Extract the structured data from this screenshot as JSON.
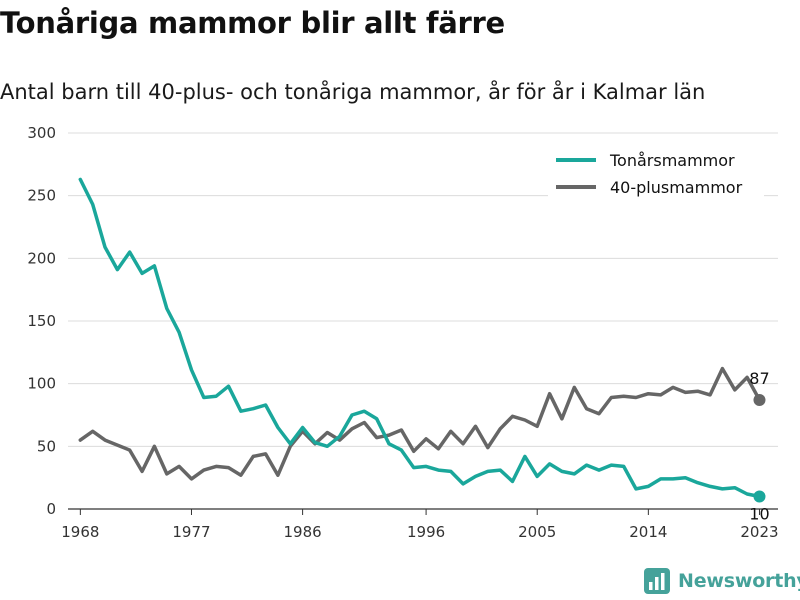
{
  "header": {
    "title": "Tonåriga mammor blir allt färre",
    "subtitle": "Antal barn till 40-plus- och tonåriga mammor, år för år i Kalmar län"
  },
  "brand": {
    "name": "Newsworthy",
    "icon": "newsworthy-logo-icon",
    "color": "#45a29a"
  },
  "chart_data": {
    "type": "line",
    "x_ticks": [
      "1968",
      "1977",
      "1986",
      "1996",
      "2005",
      "2014",
      "2023"
    ],
    "y_ticks": [
      "0",
      "50",
      "100",
      "150",
      "200",
      "250",
      "300"
    ],
    "xlim": [
      1967,
      2024.5
    ],
    "ylim": [
      0,
      300
    ],
    "grid": "horizontal",
    "legend_position": "top-right",
    "x": [
      1968,
      1969,
      1970,
      1971,
      1972,
      1973,
      1974,
      1975,
      1976,
      1977,
      1978,
      1979,
      1980,
      1981,
      1982,
      1983,
      1984,
      1985,
      1986,
      1987,
      1988,
      1989,
      1990,
      1991,
      1992,
      1993,
      1994,
      1995,
      1996,
      1997,
      1998,
      1999,
      2000,
      2001,
      2002,
      2003,
      2004,
      2005,
      2006,
      2007,
      2008,
      2009,
      2010,
      2011,
      2012,
      2013,
      2014,
      2015,
      2016,
      2017,
      2018,
      2019,
      2020,
      2021,
      2022,
      2023
    ],
    "series": [
      {
        "name": "Tonårsmammor",
        "color": "#1aa79b",
        "values": [
          263,
          243,
          209,
          191,
          205,
          188,
          194,
          160,
          141,
          111,
          89,
          90,
          98,
          78,
          80,
          83,
          65,
          52,
          65,
          53,
          50,
          58,
          75,
          78,
          72,
          52,
          47,
          33,
          34,
          31,
          30,
          20,
          26,
          30,
          31,
          22,
          42,
          26,
          36,
          30,
          28,
          35,
          31,
          35,
          34,
          16,
          18,
          24,
          24,
          25,
          21,
          18,
          16,
          17,
          12,
          10
        ],
        "end_label": "10"
      },
      {
        "name": "40-plusmammor",
        "color": "#666666",
        "values": [
          55,
          62,
          55,
          51,
          47,
          30,
          50,
          28,
          34,
          24,
          31,
          34,
          33,
          27,
          42,
          44,
          27,
          50,
          62,
          52,
          61,
          55,
          64,
          69,
          57,
          59,
          63,
          46,
          56,
          48,
          62,
          52,
          66,
          49,
          64,
          74,
          71,
          66,
          92,
          72,
          97,
          80,
          76,
          89,
          90,
          89,
          92,
          91,
          97,
          93,
          94,
          91,
          112,
          95,
          105,
          87
        ],
        "end_label": "87"
      }
    ]
  }
}
